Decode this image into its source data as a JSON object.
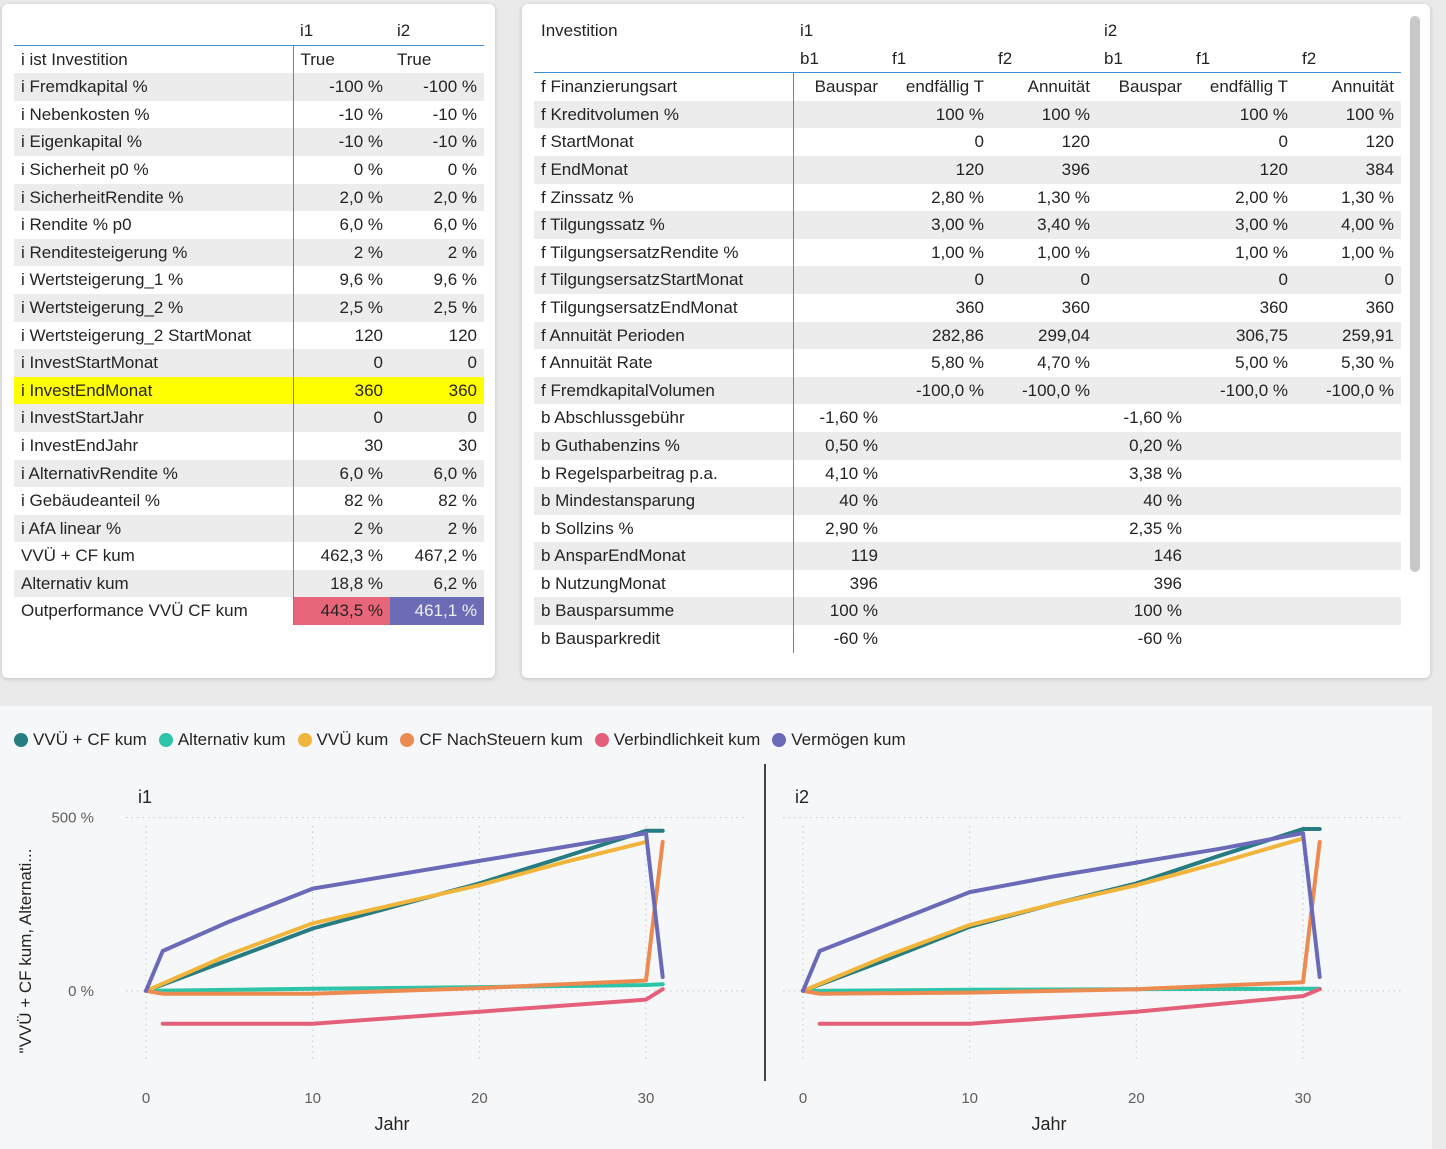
{
  "left_table": {
    "headers": [
      "",
      "i1",
      "i2"
    ],
    "rows": [
      [
        "i ist Investition",
        "True",
        "True"
      ],
      [
        "i Fremdkapital %",
        "-100 %",
        "-100 %"
      ],
      [
        "i Nebenkosten %",
        "-10 %",
        "-10 %"
      ],
      [
        "i Eigenkapital %",
        "-10 %",
        "-10 %"
      ],
      [
        "i Sicherheit p0 %",
        "0 %",
        "0 %"
      ],
      [
        "i SicherheitRendite %",
        "2,0 %",
        "2,0 %"
      ],
      [
        "i Rendite % p0",
        "6,0 %",
        "6,0 %"
      ],
      [
        "i Renditesteigerung %",
        "2 %",
        "2 %"
      ],
      [
        "i Wertsteigerung_1 %",
        "9,6 %",
        "9,6 %"
      ],
      [
        "i Wertsteigerung_2 %",
        "2,5 %",
        "2,5 %"
      ],
      [
        "i Wertsteigerung_2 StartMonat",
        "120",
        "120"
      ],
      [
        "i InvestStartMonat",
        "0",
        "0"
      ],
      [
        "i InvestEndMonat",
        "360",
        "360"
      ],
      [
        "i InvestStartJahr",
        "0",
        "0"
      ],
      [
        "i InvestEndJahr",
        "30",
        "30"
      ],
      [
        "i AlternativRendite %",
        "6,0 %",
        "6,0 %"
      ],
      [
        "i Gebäudeanteil %",
        "82 %",
        "82 %"
      ],
      [
        "i AfA linear %",
        "2 %",
        "2 %"
      ],
      [
        "VVÜ + CF kum",
        "462,3 %",
        "467,2 %"
      ],
      [
        "Alternativ kum",
        "18,8 %",
        "6,2 %"
      ],
      [
        "Outperformance VVÜ CF kum",
        "443,5 %",
        "461,1 %"
      ]
    ],
    "highlight_color": "#ffff00",
    "outperf_colors": [
      "#e8667a",
      "#6b6bb6"
    ]
  },
  "right_table": {
    "header1": [
      "Investition",
      "i1",
      "",
      "",
      "i2",
      "",
      ""
    ],
    "header2": [
      "",
      "b1",
      "f1",
      "f2",
      "b1",
      "f1",
      "f2"
    ],
    "rows": [
      [
        "f Finanzierungsart",
        "Bauspar",
        "endfällig T",
        "Annuität",
        "Bauspar",
        "endfällig T",
        "Annuität"
      ],
      [
        "f Kreditvolumen %",
        "",
        "100 %",
        "100 %",
        "",
        "100 %",
        "100 %"
      ],
      [
        "f StartMonat",
        "",
        "0",
        "120",
        "",
        "0",
        "120"
      ],
      [
        "f EndMonat",
        "",
        "120",
        "396",
        "",
        "120",
        "384"
      ],
      [
        "f Zinssatz %",
        "",
        "2,80 %",
        "1,30 %",
        "",
        "2,00 %",
        "1,30 %"
      ],
      [
        "f Tilgungssatz %",
        "",
        "3,00 %",
        "3,40 %",
        "",
        "3,00 %",
        "4,00 %"
      ],
      [
        "f TilgungsersatzRendite %",
        "",
        "1,00 %",
        "1,00 %",
        "",
        "1,00 %",
        "1,00 %"
      ],
      [
        "f TilgungsersatzStartMonat",
        "",
        "0",
        "0",
        "",
        "0",
        "0"
      ],
      [
        "f TilgungsersatzEndMonat",
        "",
        "360",
        "360",
        "",
        "360",
        "360"
      ],
      [
        "f Annuität Perioden",
        "",
        "282,86",
        "299,04",
        "",
        "306,75",
        "259,91"
      ],
      [
        "f Annuität Rate",
        "",
        "5,80 %",
        "4,70 %",
        "",
        "5,00 %",
        "5,30 %"
      ],
      [
        "f FremdkapitalVolumen",
        "",
        "-100,0 %",
        "-100,0 %",
        "",
        "-100,0 %",
        "-100,0 %"
      ],
      [
        "b Abschlussgebühr",
        "-1,60 %",
        "",
        "",
        "-1,60 %",
        "",
        ""
      ],
      [
        "b Guthabenzins %",
        "0,50 %",
        "",
        "",
        "0,20 %",
        "",
        ""
      ],
      [
        "b Regelsparbeitrag p.a.",
        "4,10 %",
        "",
        "",
        "3,38 %",
        "",
        ""
      ],
      [
        "b Mindestansparung",
        "40 %",
        "",
        "",
        "40 %",
        "",
        ""
      ],
      [
        "b Sollzins %",
        "2,90 %",
        "",
        "",
        "2,35 %",
        "",
        ""
      ],
      [
        "b AnsparEndMonat",
        "119",
        "",
        "",
        "146",
        "",
        ""
      ],
      [
        "b NutzungMonat",
        "396",
        "",
        "",
        "396",
        "",
        ""
      ],
      [
        "b Bausparsumme",
        "100 %",
        "",
        "",
        "100 %",
        "",
        ""
      ],
      [
        "b Bausparkredit",
        "-60 %",
        "",
        "",
        "-60 %",
        "",
        ""
      ]
    ]
  },
  "chart_data": {
    "type": "line",
    "legend": [
      {
        "name": "VVÜ + CF kum",
        "color": "#267c80"
      },
      {
        "name": "Alternativ kum",
        "color": "#2ec4a8"
      },
      {
        "name": "VVÜ kum",
        "color": "#f2b53c"
      },
      {
        "name": "CF NachSteuern kum",
        "color": "#ec8a50"
      },
      {
        "name": "Verbindlichkeit kum",
        "color": "#e4607a"
      },
      {
        "name": "Vermögen kum",
        "color": "#6a6ab8"
      }
    ],
    "ylabel": "\"VVÜ + CF kum, Alternati...",
    "xlabel": "Jahr",
    "x_ticks": [
      "0",
      "10",
      "20",
      "30"
    ],
    "y_ticks": [
      "0 %",
      "500 %"
    ],
    "xlim": [
      0,
      31
    ],
    "ylim": [
      -260,
      620
    ],
    "facets": [
      {
        "title": "i1",
        "series": [
          {
            "name": "VVÜ + CF kum",
            "x": [
              0,
              5,
              10,
              15,
              20,
              25,
              30,
              31
            ],
            "y": [
              0,
              90,
              180,
              245,
              310,
              385,
              462,
              462
            ]
          },
          {
            "name": "Alternativ kum",
            "x": [
              0,
              10,
              20,
              30,
              31
            ],
            "y": [
              0,
              6,
              11,
              17,
              19
            ]
          },
          {
            "name": "VVÜ kum",
            "x": [
              0,
              5,
              10,
              15,
              20,
              25,
              30
            ],
            "y": [
              0,
              105,
              195,
              250,
              305,
              370,
              430
            ]
          },
          {
            "name": "CF NachSteuern kum",
            "x": [
              0,
              1,
              10,
              20,
              30,
              31
            ],
            "y": [
              0,
              -8,
              -8,
              8,
              30,
              430
            ]
          },
          {
            "name": "Verbindlichkeit kum",
            "x": [
              1,
              10,
              20,
              30,
              31
            ],
            "y": [
              -95,
              -95,
              -60,
              -25,
              5
            ]
          },
          {
            "name": "Vermögen kum",
            "x": [
              0,
              1,
              5,
              10,
              15,
              20,
              25,
              30,
              31
            ],
            "y": [
              0,
              115,
              200,
              295,
              335,
              375,
              415,
              455,
              40
            ]
          }
        ]
      },
      {
        "title": "i2",
        "series": [
          {
            "name": "VVÜ + CF kum",
            "x": [
              0,
              5,
              10,
              15,
              20,
              25,
              30,
              31
            ],
            "y": [
              0,
              90,
              185,
              250,
              310,
              390,
              467,
              467
            ]
          },
          {
            "name": "Alternativ kum",
            "x": [
              0,
              10,
              20,
              30,
              31
            ],
            "y": [
              0,
              3,
              5,
              6,
              6
            ]
          },
          {
            "name": "VVÜ kum",
            "x": [
              0,
              5,
              10,
              15,
              20,
              25,
              30
            ],
            "y": [
              0,
              100,
              190,
              250,
              305,
              370,
              440
            ]
          },
          {
            "name": "CF NachSteuern kum",
            "x": [
              0,
              1,
              10,
              20,
              30,
              31
            ],
            "y": [
              0,
              -8,
              -5,
              5,
              25,
              430
            ]
          },
          {
            "name": "Verbindlichkeit kum",
            "x": [
              1,
              10,
              20,
              30,
              31
            ],
            "y": [
              -95,
              -95,
              -60,
              -15,
              5
            ]
          },
          {
            "name": "Vermögen kum",
            "x": [
              0,
              1,
              5,
              10,
              15,
              20,
              25,
              30,
              31
            ],
            "y": [
              0,
              115,
              190,
              285,
              330,
              370,
              410,
              455,
              40
            ]
          }
        ]
      }
    ],
    "grid": true
  }
}
